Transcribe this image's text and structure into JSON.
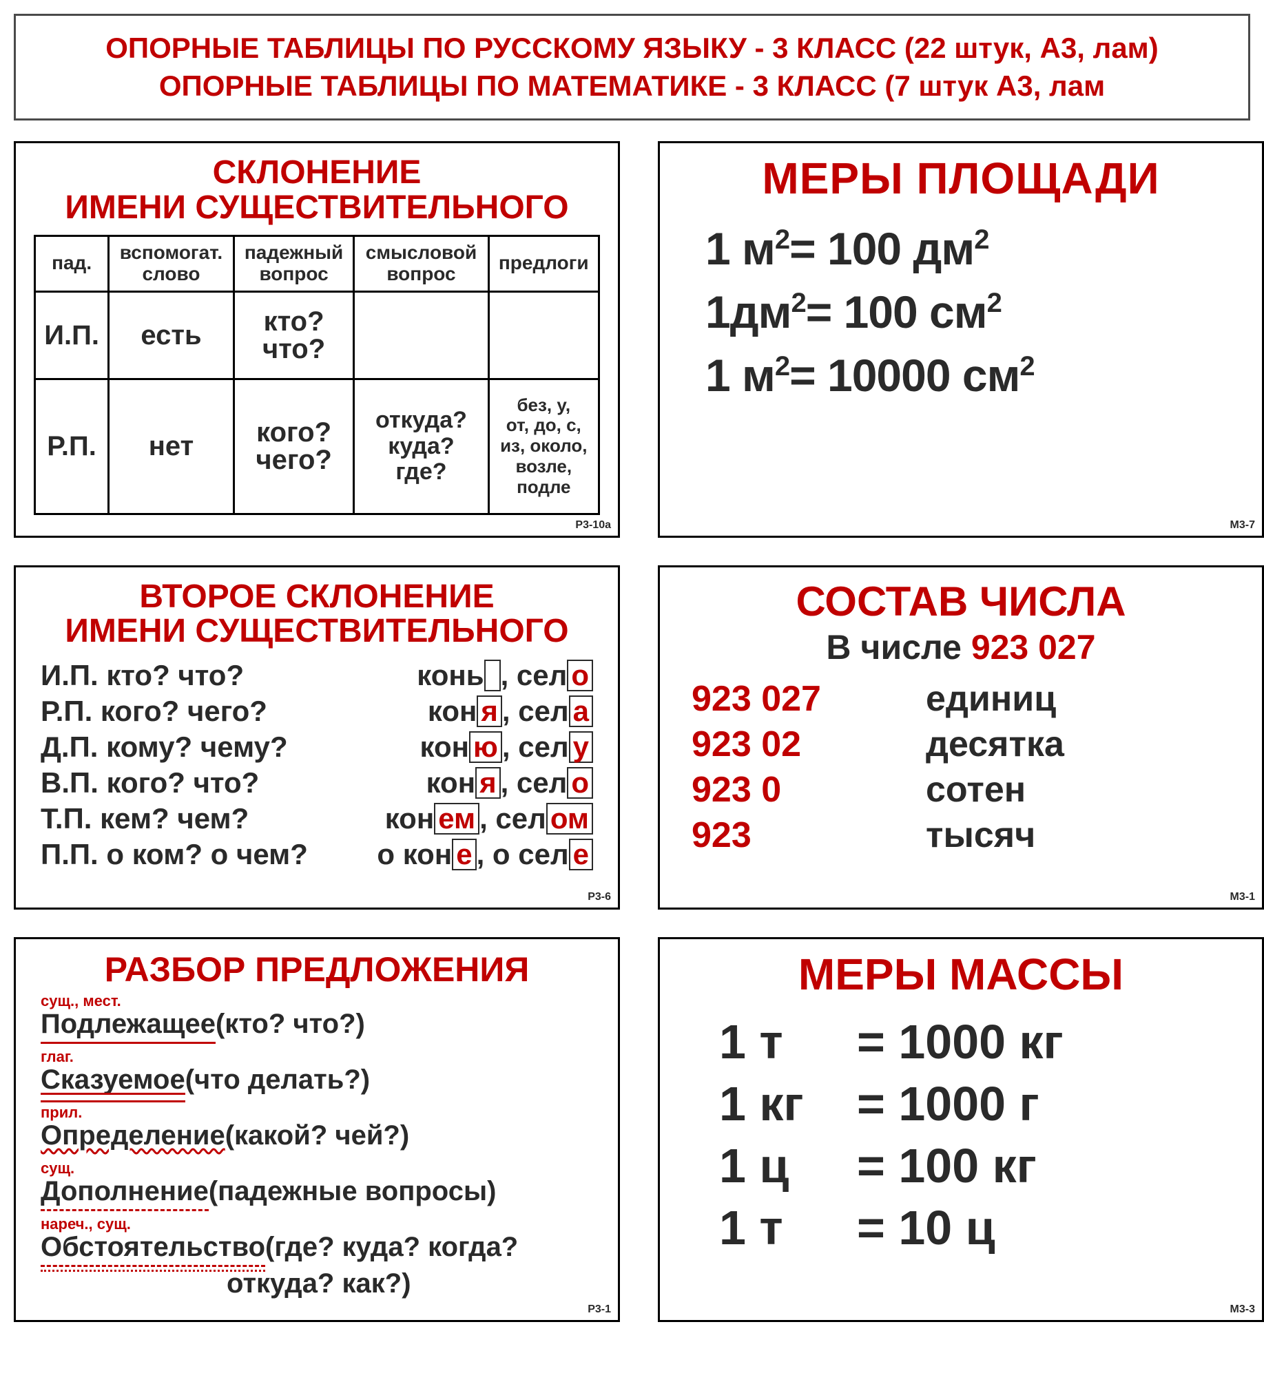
{
  "colors": {
    "red": "#c00000",
    "black": "#2a2a2a",
    "border": "#000000",
    "bg": "#ffffff"
  },
  "header": {
    "line1": "ОПОРНЫЕ ТАБЛИЦЫ ПО РУССКОМУ ЯЗЫКУ - 3 КЛАСС (22 штук, А3, лам)",
    "line2": "ОПОРНЫЕ ТАБЛИЦЫ ПО МАТЕМАТИКЕ - 3 КЛАСС (7 штук А3, лам"
  },
  "card1": {
    "title_l1": "СКЛОНЕНИЕ",
    "title_l2": "ИМЕНИ СУЩЕСТВИТЕЛЬНОГО",
    "code": "Р3-10а",
    "headers": [
      "пад.",
      "вспомогат.\nслово",
      "падежный\nвопрос",
      "смысловой\nвопрос",
      "предлоги"
    ],
    "rows": [
      {
        "case": "И.П.",
        "helper": "есть",
        "q": "кто?\nчто?",
        "sq": "",
        "prep": ""
      },
      {
        "case": "Р.П.",
        "helper": "нет",
        "q": "кого?\nчего?",
        "sq": "откуда?\nкуда?\nгде?",
        "prep": "без, у,\nот, до, с,\nиз, около,\nвозле,\nподле"
      }
    ]
  },
  "card2": {
    "title": "МЕРЫ ПЛОЩАДИ",
    "code": "М3-7",
    "lines": [
      {
        "lhs_val": "1 м",
        "lhs_sup": "2",
        "rhs_val": "= 100 дм",
        "rhs_sup": "2"
      },
      {
        "lhs_val": "1дм",
        "lhs_sup": "2",
        "rhs_val": "= 100 см",
        "rhs_sup": "2"
      },
      {
        "lhs_val": "1 м",
        "lhs_sup": "2",
        "rhs_val": "= 10000 см",
        "rhs_sup": "2"
      }
    ]
  },
  "card3": {
    "title_l1": "ВТОРОЕ СКЛОНЕНИЕ",
    "title_l2": "ИМЕНИ СУЩЕСТВИТЕЛЬНОГО",
    "code": "Р3-6",
    "rows": [
      {
        "case": "И.П.",
        "q": "кто? что?",
        "stem1": "конь",
        "end1": "",
        "stem2": ", сел",
        "end2": "о"
      },
      {
        "case": "Р.П.",
        "q": "кого? чего?",
        "stem1": "кон",
        "end1": "я",
        "stem2": ", сел",
        "end2": "а"
      },
      {
        "case": "Д.П.",
        "q": "кому? чему?",
        "stem1": "кон",
        "end1": "ю",
        "stem2": ", сел",
        "end2": "у"
      },
      {
        "case": "В.П.",
        "q": "кого? что?",
        "stem1": "кон",
        "end1": "я",
        "stem2": ", сел",
        "end2": "о"
      },
      {
        "case": "Т.П.",
        "q": "кем? чем?",
        "stem1": "кон",
        "end1": "ем",
        "stem2": ", сел",
        "end2": "ом"
      },
      {
        "case": "П.П.",
        "q": "о ком? о чем?",
        "stem1": "о кон",
        "end1": "е",
        "stem2": ", о сел",
        "end2": "е"
      }
    ]
  },
  "card4": {
    "title": "СОСТАВ ЧИСЛА",
    "sub_black": "В числе ",
    "sub_red": "923 027",
    "code": "М3-1",
    "rows": [
      {
        "num": "923 027",
        "word": "единиц"
      },
      {
        "num": "923 02",
        "word": "десятка"
      },
      {
        "num": "923 0",
        "word": "сотен"
      },
      {
        "num": "923",
        "word": "тысяч"
      }
    ]
  },
  "card5": {
    "title": "РАЗБОР ПРЕДЛОЖЕНИЯ",
    "code": "Р3-1",
    "lines": [
      {
        "pos": "сущ., мест.",
        "term": "Подлежащее ",
        "q": "(кто? что?)",
        "style": "u1"
      },
      {
        "pos": "глаг.",
        "term": "Сказуемое ",
        "q": "(что делать?)",
        "style": "u2"
      },
      {
        "pos": "прил.",
        "term": "Определение ",
        "q": "(какой? чей?)",
        "style": "wavy"
      },
      {
        "pos": "сущ.",
        "term": "Дополнение ",
        "q": "(падежные вопросы)",
        "style": "dash"
      },
      {
        "pos": "нареч., сущ.",
        "term": "Обстоятельство ",
        "q": "(где? куда? когда?",
        "style": "dotdash"
      }
    ],
    "extra": "откуда? как?)"
  },
  "card6": {
    "title": "МЕРЫ МАССЫ",
    "code": "М3-3",
    "lines": [
      {
        "lhs": "1 т",
        "rhs": "= 1000 кг"
      },
      {
        "lhs": "1 кг",
        "rhs": "= 1000 г"
      },
      {
        "lhs": "1 ц",
        "rhs": "= 100 кг"
      },
      {
        "lhs": "1 т",
        "rhs": "= 10 ц"
      }
    ]
  }
}
